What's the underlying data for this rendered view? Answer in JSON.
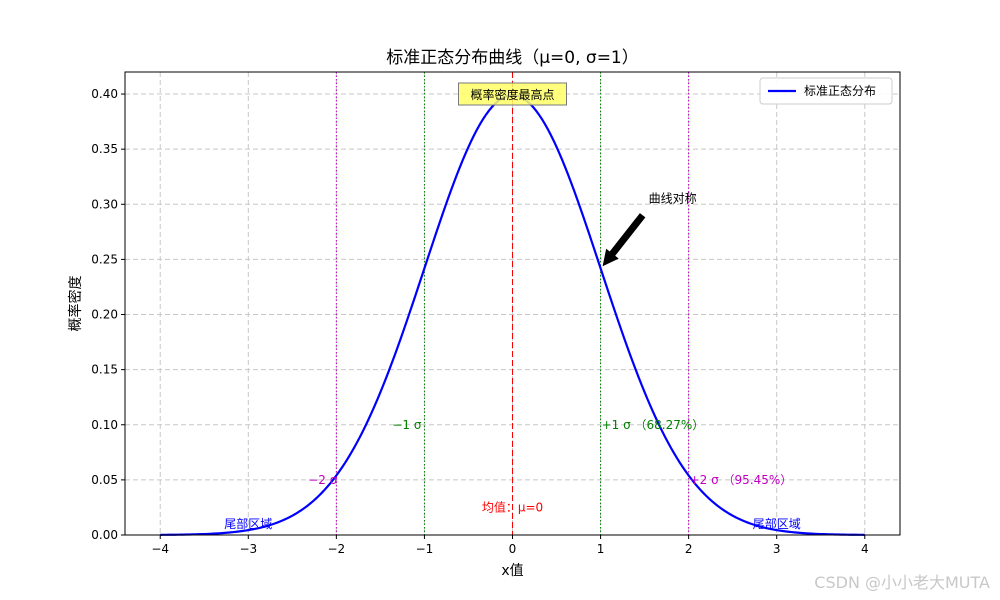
{
  "chart_data": {
    "type": "line",
    "title": "标准正态分布曲线（μ=0, σ=1）",
    "xlabel": "x值",
    "ylabel": "概率密度",
    "xlim": [
      -4.4,
      4.4
    ],
    "ylim": [
      0,
      0.42
    ],
    "x_ticks": [
      -4,
      -3,
      -2,
      -1,
      0,
      1,
      2,
      3,
      4
    ],
    "x_tick_labels": [
      "−4",
      "−3",
      "−2",
      "−1",
      "0",
      "1",
      "2",
      "3",
      "4"
    ],
    "y_ticks": [
      0,
      0.05,
      0.1,
      0.15,
      0.2,
      0.25,
      0.3,
      0.35,
      0.4
    ],
    "y_tick_labels": [
      "0.00",
      "0.05",
      "0.10",
      "0.15",
      "0.20",
      "0.25",
      "0.30",
      "0.35",
      "0.40"
    ],
    "grid": true,
    "legend_position": "top-right",
    "series": [
      {
        "name": "标准正态分布",
        "color": "#0000ff",
        "x": [
          -4,
          -3.5,
          -3,
          -2.5,
          -2,
          -1.5,
          -1,
          -0.5,
          0,
          0.5,
          1,
          1.5,
          2,
          2.5,
          3,
          3.5,
          4
        ],
        "y": [
          0.0001,
          0.0009,
          0.0044,
          0.0175,
          0.054,
          0.1295,
          0.242,
          0.3521,
          0.3989,
          0.3521,
          0.242,
          0.1295,
          0.054,
          0.0175,
          0.0044,
          0.0009,
          0.0001
        ]
      }
    ],
    "vlines": [
      {
        "x": 0,
        "color": "#ff0000",
        "style": "dashed"
      },
      {
        "x": -1,
        "color": "#008000",
        "style": "dotted"
      },
      {
        "x": 1,
        "color": "#008000",
        "style": "dotted"
      },
      {
        "x": -2,
        "color": "#bf00bf",
        "style": "dotted"
      },
      {
        "x": 2,
        "color": "#bf00bf",
        "style": "dotted"
      }
    ],
    "annotations": [
      {
        "text": "概率密度最高点",
        "x": 0,
        "y": 0.3989,
        "color": "#000000",
        "boxed": true
      },
      {
        "text": "曲线对称",
        "x": 1.5,
        "y": 0.3,
        "color": "#000000",
        "arrow_to": {
          "x": 1,
          "y": 0.242
        }
      },
      {
        "text": "−1 σ",
        "x": -1.05,
        "y": 0.1,
        "color": "#008000"
      },
      {
        "text": "+1 σ （68.27%）",
        "x": 1.0,
        "y": 0.1,
        "color": "#008000"
      },
      {
        "text": "−2 σ",
        "x": -2.05,
        "y": 0.05,
        "color": "#bf00bf"
      },
      {
        "text": "+2 σ （95.45%）",
        "x": 2.0,
        "y": 0.05,
        "color": "#bf00bf"
      },
      {
        "text": "均值：μ=0",
        "x": 0,
        "y": 0.025,
        "color": "#ff0000"
      },
      {
        "text": "尾部区域",
        "x": -3,
        "y": 0.01,
        "color": "#0000ff"
      },
      {
        "text": "尾部区域",
        "x": 3,
        "y": 0.01,
        "color": "#0000ff"
      }
    ]
  },
  "watermark": "CSDN @小小老大MUTA"
}
